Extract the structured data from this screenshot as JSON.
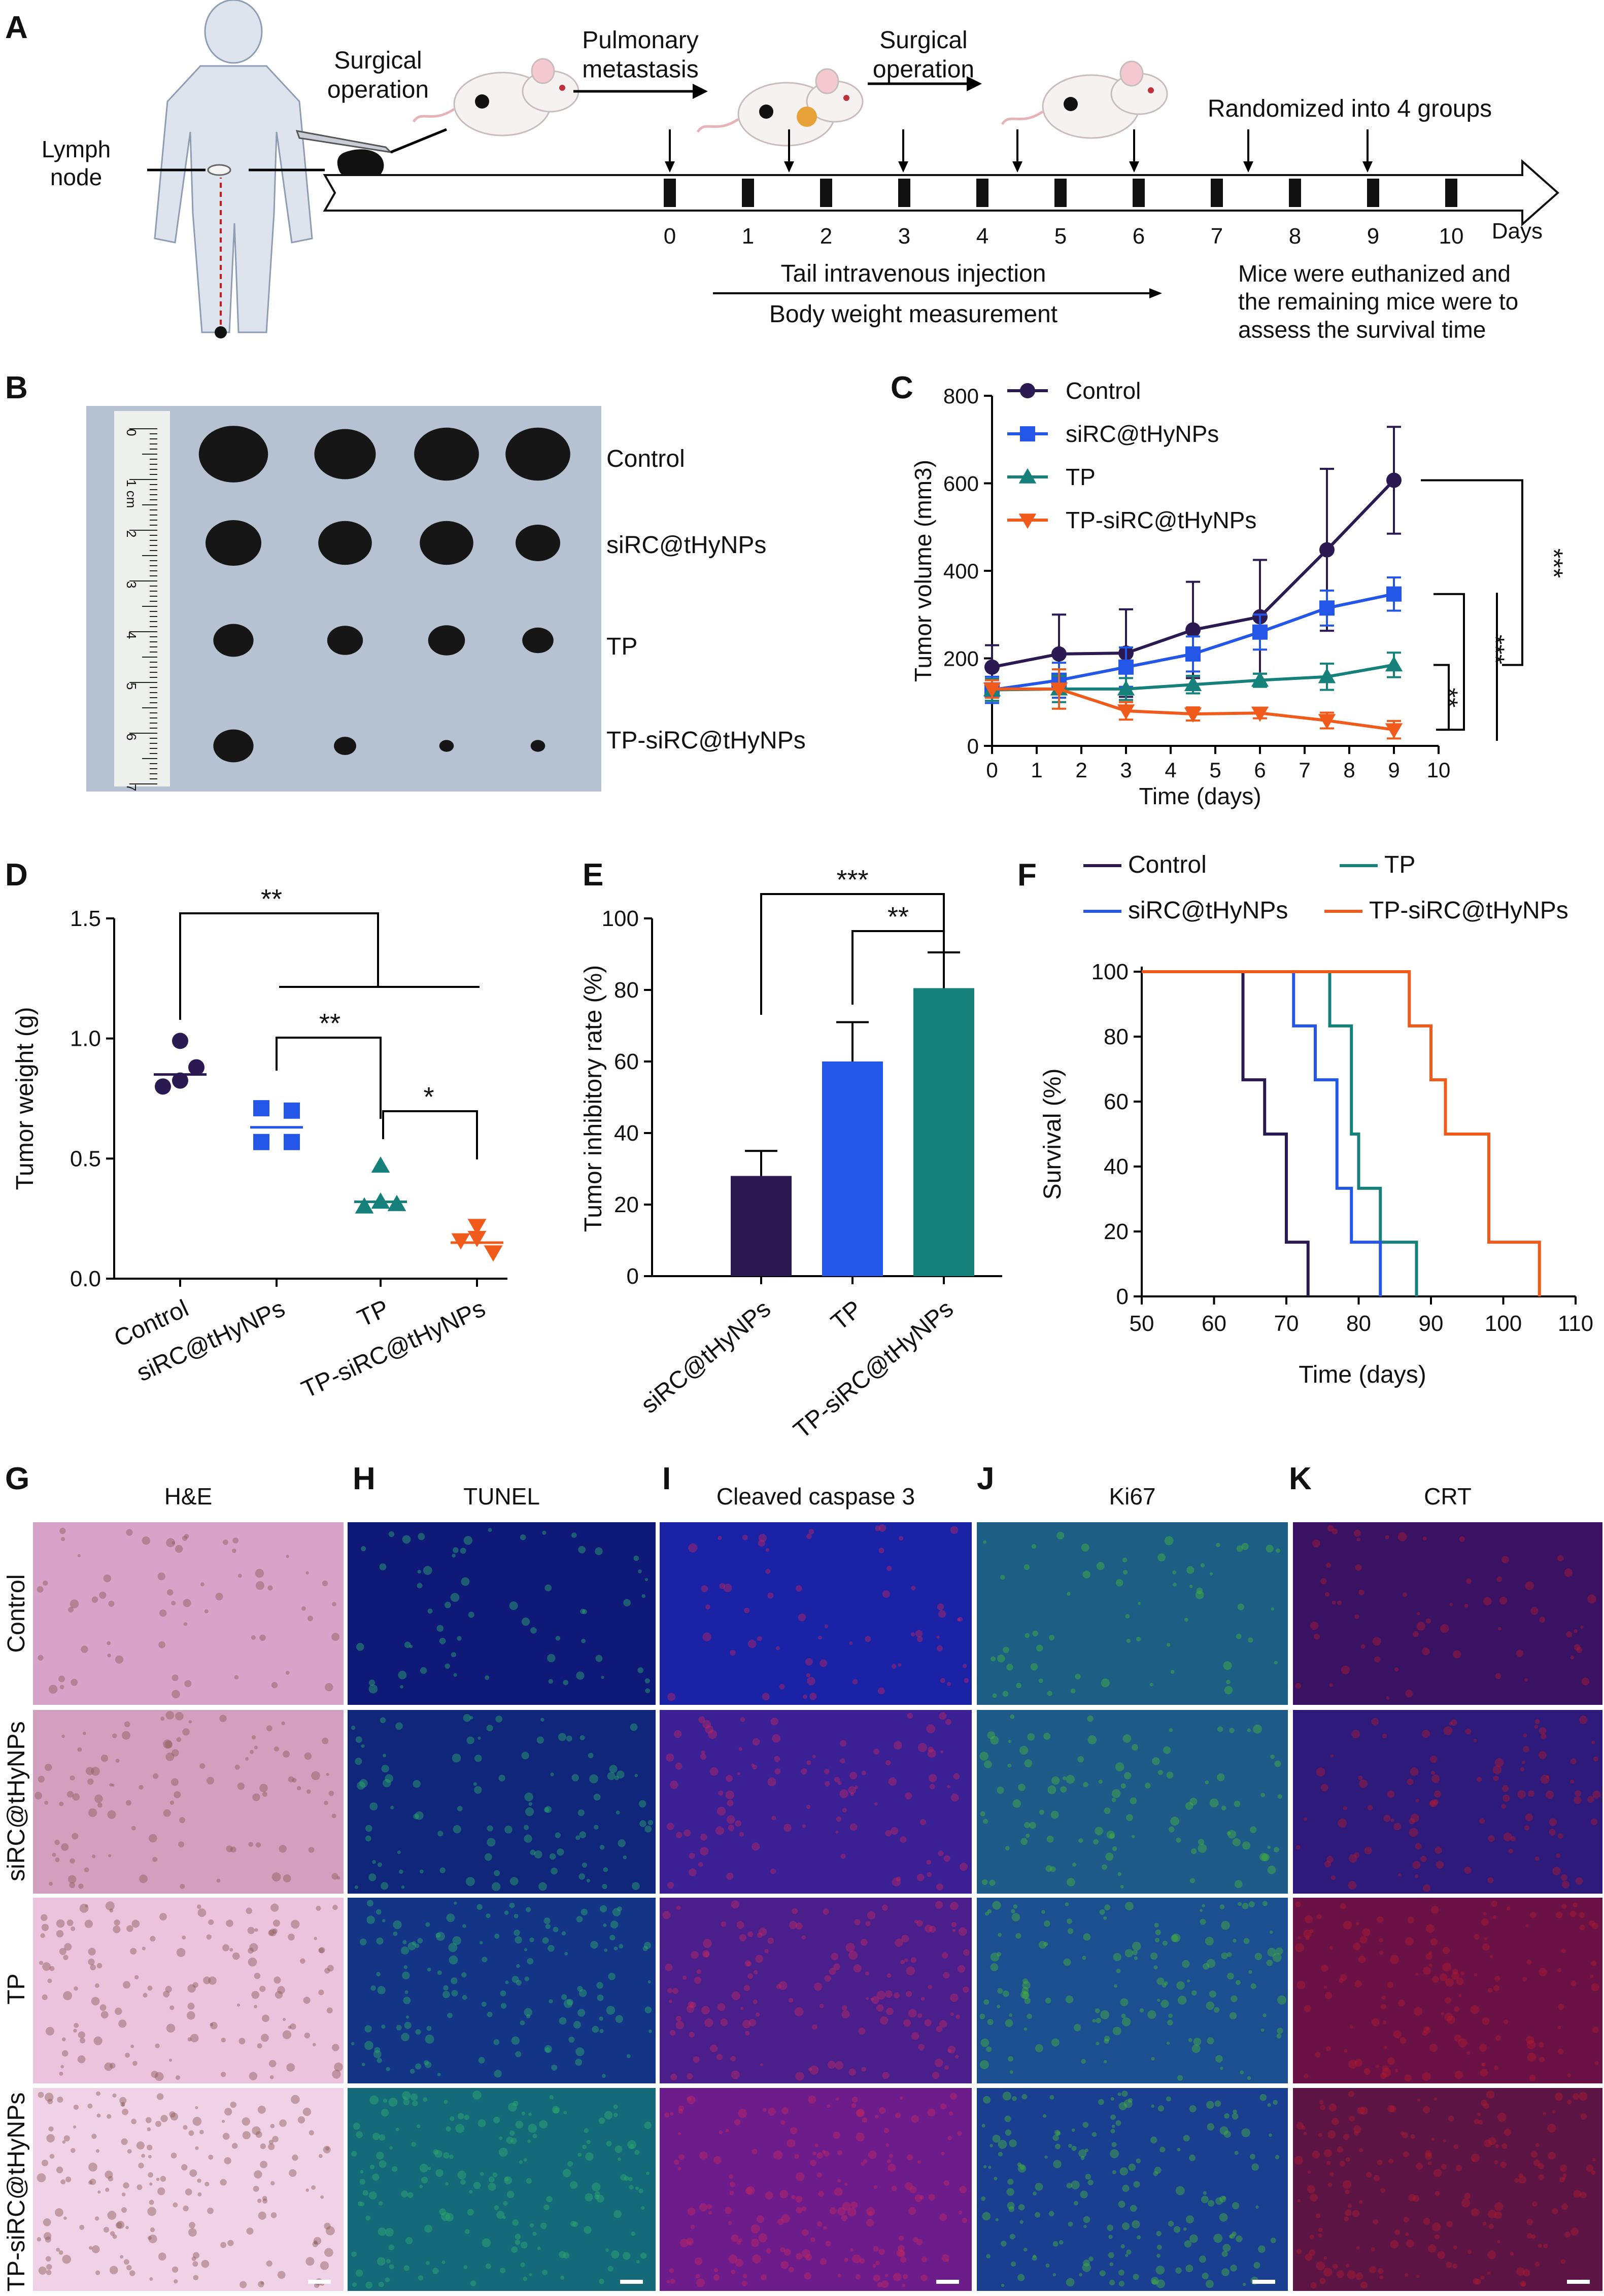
{
  "colors": {
    "control": "#2b1a52",
    "sirc": "#2457e8",
    "tp": "#16807a",
    "tpsirc": "#f05a1a",
    "axis": "#000000"
  },
  "panel_letters": [
    "A",
    "B",
    "C",
    "D",
    "E",
    "F",
    "G",
    "H",
    "I",
    "J",
    "K"
  ],
  "panel_a": {
    "lymph_node": "Lymph\nnode",
    "surgical_operation_1": "Surgical\noperation",
    "pulmonary_metastasis": "Pulmonary\nmetastasis",
    "surgical_operation_2": "Surgical\noperation",
    "randomized": "Randomized into 4 groups",
    "timeline_ticks": [
      "0",
      "1",
      "2",
      "3",
      "4",
      "5",
      "6",
      "7",
      "8",
      "9",
      "10"
    ],
    "days_label": "Days",
    "injection_label": "Tail intravenous injection",
    "body_weight_label": "Body weight measurement",
    "euthanized_label": "Mice were euthanized and\nthe remaining mice were to\nassess the survival time"
  },
  "panel_b": {
    "ruler_labels": [
      "0",
      "1 cm",
      "2",
      "3",
      "4",
      "5",
      "6",
      "7"
    ],
    "group_labels": [
      "Control",
      "siRC@tHyNPs",
      "TP",
      "TP-siRC@tHyNPs"
    ]
  },
  "panel_g_k": {
    "column_titles": [
      "H&E",
      "TUNEL",
      "Cleaved caspase 3",
      "Ki67",
      "CRT"
    ],
    "row_labels": [
      "Control",
      "siRC@tHyNPs",
      "TP",
      "TP-siRC@tHyNPs"
    ]
  },
  "chart_data": [
    {
      "id": "C",
      "type": "line",
      "title": "",
      "xlabel": "Time (days)",
      "ylabel": "Tumor volume (mm3)",
      "xlim": [
        0,
        10
      ],
      "ylim": [
        0,
        800
      ],
      "xticks": [
        0,
        1,
        2,
        3,
        4,
        5,
        6,
        7,
        8,
        9,
        10
      ],
      "yticks": [
        0,
        200,
        400,
        600,
        800
      ],
      "x": [
        0,
        1.5,
        3,
        4.5,
        6,
        7.5,
        9
      ],
      "series": [
        {
          "name": "Control",
          "marker": "circle",
          "values": [
            180,
            210,
            212,
            265,
            295,
            448,
            607
          ],
          "errors": [
            50,
            90,
            100,
            110,
            130,
            185,
            122
          ]
        },
        {
          "name": "siRC@tHyNPs",
          "marker": "square",
          "values": [
            128,
            150,
            180,
            210,
            260,
            315,
            347
          ],
          "errors": [
            30,
            40,
            45,
            40,
            40,
            40,
            38
          ]
        },
        {
          "name": "TP",
          "marker": "triangle-up",
          "values": [
            128,
            130,
            130,
            140,
            150,
            158,
            185
          ],
          "errors": [
            25,
            30,
            25,
            20,
            15,
            30,
            28
          ]
        },
        {
          "name": "TP-siRC@tHyNPs",
          "marker": "triangle-down",
          "values": [
            130,
            130,
            80,
            73,
            75,
            58,
            37
          ],
          "errors": [
            20,
            45,
            20,
            15,
            12,
            18,
            20
          ]
        }
      ],
      "significance": [
        "***",
        "***",
        "**"
      ]
    },
    {
      "id": "D",
      "type": "scatter",
      "xlabel": "",
      "ylabel": "Tumor weight (g)",
      "ylim": [
        0,
        1.5
      ],
      "yticks": [
        "0.0",
        "0.5",
        "1.0",
        "1.5"
      ],
      "categories": [
        "Control",
        "siRC@tHyNPs",
        "TP",
        "TP-siRC@tHyNPs"
      ],
      "series": [
        {
          "name": "Control",
          "marker": "circle",
          "points": [
            0.99,
            0.8,
            0.88,
            0.85
          ],
          "mean": 0.85
        },
        {
          "name": "siRC@tHyNPs",
          "marker": "square",
          "points": [
            0.68,
            0.59,
            0.67,
            0.59
          ],
          "mean": 0.63
        },
        {
          "name": "TP",
          "marker": "triangle-up",
          "points": [
            0.47,
            0.3,
            0.32,
            0.31
          ],
          "mean": 0.32
        },
        {
          "name": "TP-siRC@tHyNPs",
          "marker": "triangle-down",
          "points": [
            0.22,
            0.16,
            0.11,
            0.17
          ],
          "mean": 0.15
        }
      ],
      "significance": [
        "**",
        "**",
        "*"
      ]
    },
    {
      "id": "E",
      "type": "bar",
      "xlabel": "",
      "ylabel": "Tumor inhibitory rate (%)",
      "ylim": [
        0,
        100
      ],
      "yticks": [
        0,
        20,
        40,
        60,
        80,
        100
      ],
      "categories": [
        "siRC@tHyNPs",
        "TP",
        "TP-siRC@tHyNPs"
      ],
      "values": [
        28,
        60,
        80.5
      ],
      "errors": [
        7,
        11,
        10
      ],
      "significance": [
        "***",
        "**"
      ]
    },
    {
      "id": "F",
      "type": "line",
      "xlabel": "Time (days)",
      "ylabel": "Survival (%)",
      "xlim": [
        50,
        110
      ],
      "ylim": [
        0,
        100
      ],
      "xticks": [
        50,
        60,
        70,
        80,
        90,
        100,
        110
      ],
      "yticks": [
        0,
        20,
        40,
        60,
        80,
        100
      ],
      "series": [
        {
          "name": "Control",
          "times": [
            64,
            67,
            70,
            73
          ],
          "levels": [
            66.7,
            50,
            16.7,
            0
          ]
        },
        {
          "name": "TP",
          "times": [
            76,
            79,
            80,
            83,
            88
          ],
          "levels": [
            83.3,
            50,
            33.3,
            16.7,
            0
          ]
        },
        {
          "name": "siRC@tHyNPs",
          "times": [
            71,
            74,
            77,
            79,
            83
          ],
          "levels": [
            83.3,
            66.7,
            33.3,
            16.7,
            0
          ]
        },
        {
          "name": "TP-siRC@tHyNPs",
          "times": [
            87,
            90,
            92,
            94,
            98,
            99,
            105
          ],
          "levels": [
            83.3,
            66.7,
            50,
            50,
            16.7,
            16.7,
            0
          ]
        }
      ]
    }
  ]
}
